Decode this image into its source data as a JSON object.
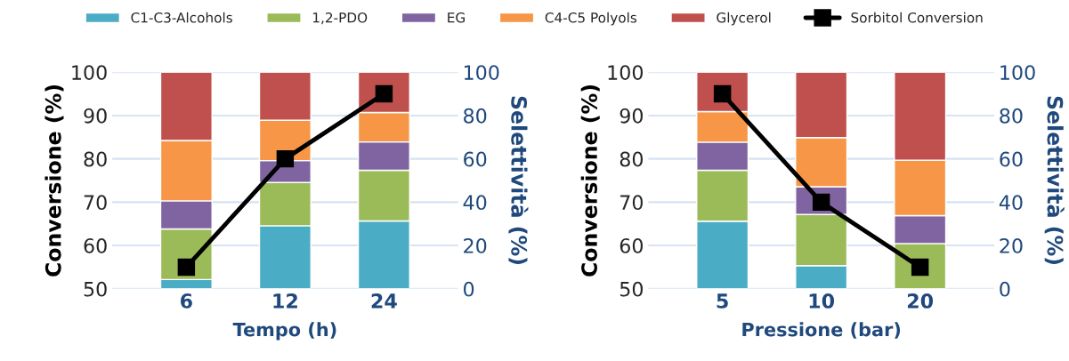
{
  "chart_data": [
    {
      "type": "bar",
      "stacked": true,
      "categories": [
        "6",
        "12",
        "24"
      ],
      "xlabel": "Tempo (h)",
      "ylabel": "Conversione (%)",
      "y2label": "Selettività (%)",
      "ylim": [
        50,
        100
      ],
      "yticks": [
        50,
        60,
        70,
        80,
        90,
        100
      ],
      "y2lim": [
        0,
        100
      ],
      "y2ticks": [
        0,
        20,
        40,
        60,
        80,
        100
      ],
      "grid": "y",
      "legend": "top",
      "series": [
        {
          "name": "C1-C3-Alcohols",
          "color": "#4bacc6",
          "axis": "y2",
          "values": [
            4.3,
            29.1,
            31.3
          ]
        },
        {
          "name": "1,2-PDO",
          "color": "#9bbb59",
          "axis": "y2",
          "values": [
            23.3,
            20.0,
            23.4
          ]
        },
        {
          "name": "EG",
          "color": "#8064a2",
          "axis": "y2",
          "values": [
            13.0,
            10.1,
            13.1
          ]
        },
        {
          "name": "C4-C5 Polyols",
          "color": "#f79646",
          "axis": "y2",
          "values": [
            27.9,
            18.6,
            13.6
          ]
        },
        {
          "name": "Glycerol",
          "color": "#c0504d",
          "axis": "y2",
          "values": [
            31.5,
            22.2,
            18.6
          ]
        },
        {
          "name": "Sorbitol Conversion",
          "type": "line",
          "color": "#000000",
          "marker": "square",
          "values": [
            55,
            80,
            95
          ]
        }
      ]
    },
    {
      "type": "bar",
      "stacked": true,
      "categories": [
        "5",
        "10",
        "20"
      ],
      "xlabel": "Pressione (bar)",
      "ylabel": "Conversione (%)",
      "y2label": "Selettività (%)",
      "ylim": [
        50,
        100
      ],
      "yticks": [
        50,
        60,
        70,
        80,
        90,
        100
      ],
      "y2lim": [
        0,
        100
      ],
      "y2ticks": [
        0,
        20,
        40,
        60,
        80,
        100
      ],
      "grid": "y",
      "series": [
        {
          "color": "#4bacc6",
          "axis": "y2",
          "values": [
            31.2,
            10.7,
            0
          ]
        },
        {
          "color": "#9bbb59",
          "axis": "y2",
          "values": [
            23.5,
            23.6,
            20.9
          ]
        },
        {
          "color": "#8064a2",
          "axis": "y2",
          "values": [
            13.0,
            12.8,
            12.9
          ]
        },
        {
          "color": "#f79646",
          "axis": "y2",
          "values": [
            14.1,
            22.7,
            25.6
          ]
        },
        {
          "color": "#c0504d",
          "axis": "y2",
          "values": [
            18.2,
            30.2,
            40.6
          ]
        },
        {
          "type": "line",
          "color": "#000000",
          "marker": "square",
          "values": [
            95,
            70,
            55
          ]
        }
      ]
    }
  ]
}
